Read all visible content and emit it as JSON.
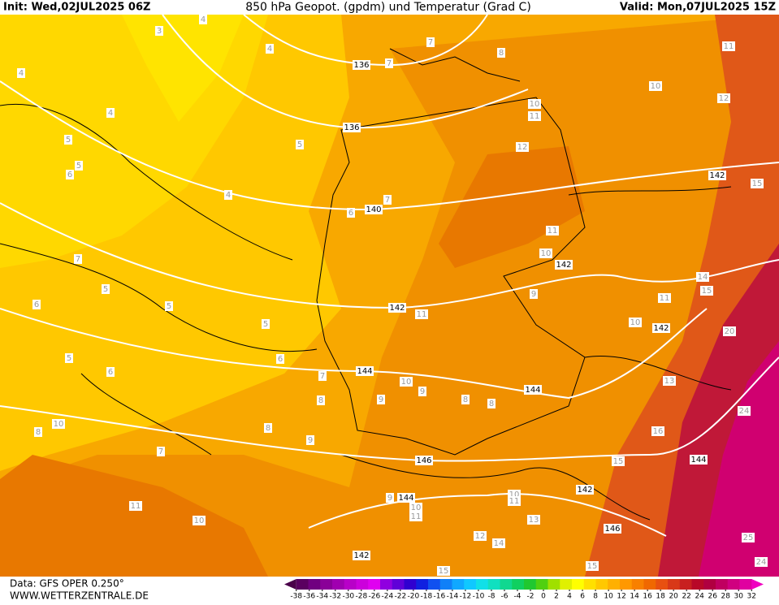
{
  "header": {
    "init": "Init: Wed,02JUL2025 06Z",
    "title": "850 hPa Geopot. (gpdm) und Temperatur (Grad C)",
    "valid": "Valid: Mon,07JUL2025 15Z"
  },
  "footer": {
    "data_source": "Data: GFS OPER 0.250°",
    "website": "WWW.WETTERZENTRALE.DE"
  },
  "colorbar": {
    "levels": [
      -38,
      -36,
      -34,
      -32,
      -30,
      -28,
      -26,
      -24,
      -22,
      -20,
      -18,
      -16,
      -14,
      -12,
      -10,
      -8,
      -6,
      -4,
      -2,
      0,
      2,
      4,
      6,
      8,
      10,
      12,
      14,
      16,
      18,
      20,
      22,
      24,
      26,
      28,
      30,
      32
    ],
    "colors": [
      "#4a004a",
      "#5a0060",
      "#700080",
      "#8a0098",
      "#a000b0",
      "#b800c8",
      "#cc00dc",
      "#e000f0",
      "#9000e0",
      "#6000d8",
      "#3000d0",
      "#1020e0",
      "#1050f0",
      "#1080f8",
      "#10a8ff",
      "#10c8ff",
      "#10e0e8",
      "#10e0c0",
      "#10d890",
      "#10d060",
      "#20c830",
      "#50d010",
      "#a0e000",
      "#e0f000",
      "#ffff00",
      "#ffe000",
      "#ffc800",
      "#ffb000",
      "#ff9800",
      "#f88000",
      "#f06800",
      "#e85010",
      "#d83818",
      "#c82020",
      "#b80828",
      "#b00040",
      "#c00060",
      "#d00080",
      "#e000a0",
      "#f000c0"
    ]
  },
  "map": {
    "isohypse_labels": [
      "136",
      "136",
      "140",
      "142",
      "142",
      "142",
      "142",
      "144",
      "144",
      "144",
      "146",
      "144",
      "142",
      "146",
      "142"
    ],
    "isotherm_labels": [
      "3",
      "4",
      "4",
      "4",
      "4",
      "5",
      "5",
      "6",
      "4",
      "5",
      "7",
      "5",
      "5",
      "5",
      "5",
      "6",
      "6",
      "6",
      "7",
      "8",
      "9",
      "8",
      "9",
      "7",
      "10",
      "8",
      "11",
      "10",
      "10",
      "9",
      "8",
      "8",
      "9",
      "10",
      "11",
      "12",
      "11",
      "10",
      "10",
      "11",
      "12",
      "15",
      "14",
      "15",
      "11",
      "10",
      "11",
      "20",
      "13",
      "24",
      "15",
      "10",
      "13",
      "12",
      "14",
      "15",
      "25",
      "24",
      "15",
      "16",
      "7",
      "6",
      "7",
      "7",
      "8",
      "9",
      "10",
      "11",
      "11"
    ]
  }
}
